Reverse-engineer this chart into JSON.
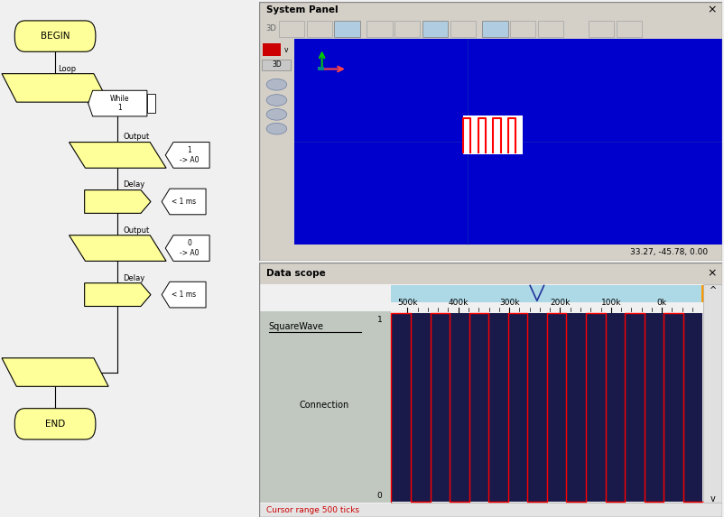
{
  "bg_color": "#f0f0f0",
  "flowchart": {
    "shape_fill": "#ffff99",
    "shape_edge": "#000000",
    "begin_text": "BEGIN",
    "end_text": "END",
    "loop_text": "Loop",
    "while_text": "While\n1",
    "output1_text": "Output",
    "output1_param": "1\n-> A0",
    "delay1_text": "Delay",
    "delay1_param": "< 1 ms",
    "output2_text": "Output",
    "output2_param": "0\n-> A0",
    "delay2_text": "Delay",
    "delay2_param": "< 1 ms"
  },
  "system_panel": {
    "title": "System Panel",
    "bg": "#d4d0c8",
    "canvas_bg": "#0000cc",
    "coords_text": "33.27, -45.78, 0.00",
    "sq_wave_color": "#ff0000",
    "axis_color_x": "#ff4444",
    "axis_color_y": "#00cc00"
  },
  "data_scope": {
    "title": "Data scope",
    "plot_bg": "#1a1a4a",
    "wave_color": "#ff0000",
    "wave_label": "SquareWave",
    "connection_label": "Connection",
    "tick_labels": [
      "500k",
      "400k",
      "300k",
      "200k",
      "100k",
      "0k"
    ],
    "y_label_0": "0",
    "y_label_1": "1",
    "cursor_text": "Cursor range 500 ticks",
    "nav_bar_color": "#add8e6"
  }
}
